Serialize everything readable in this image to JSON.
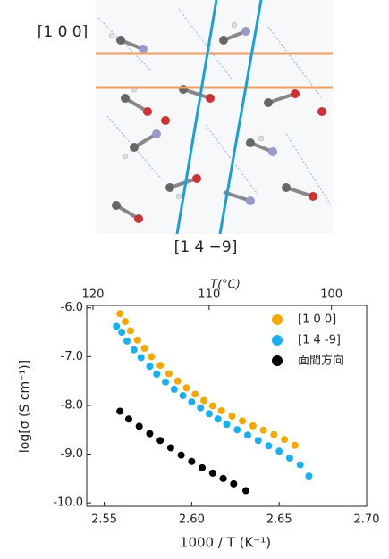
{
  "figure": {
    "labels": [
      "[1 0 0]",
      "[1 4 −9]"
    ],
    "colors": [
      "#f0a060",
      "#1a9fd6"
    ]
  },
  "chart_data": {
    "type": "scatter",
    "title": "T(°C)",
    "x_label": "1000 / T (K⁻¹)",
    "y_label": "log[σ (S cm⁻¹)]",
    "xlim": [
      2.54,
      2.7
    ],
    "ylim": [
      -10.07,
      -5.95
    ],
    "xticks": [
      2.55,
      {
        "value": 2.6,
        "label": "2.60"
      },
      2.65,
      {
        "value": 2.7,
        "label": "2.70"
      }
    ],
    "yticks": [
      {
        "value": -6,
        "label": "-6.0"
      },
      {
        "value": -7,
        "label": "-7.0"
      },
      {
        "value": -8,
        "label": "-8.0"
      },
      {
        "value": -9,
        "label": "-9.0"
      },
      {
        "value": -10,
        "label": "-10.0"
      }
    ],
    "x2ticks": [
      120,
      110,
      100
    ],
    "legend": "upper right",
    "series": [
      {
        "name": "[1 0 0]",
        "color": "#f5a800",
        "x": [
          2.559,
          2.562,
          2.565,
          2.569,
          2.573,
          2.577,
          2.582,
          2.587,
          2.592,
          2.597,
          2.602,
          2.607,
          2.612,
          2.617,
          2.623,
          2.629,
          2.635,
          2.641,
          2.647,
          2.653,
          2.659
        ],
        "values": [
          -6.12,
          -6.28,
          -6.47,
          -6.66,
          -6.83,
          -7.0,
          -7.18,
          -7.35,
          -7.5,
          -7.64,
          -7.77,
          -7.9,
          -8.01,
          -8.11,
          -8.22,
          -8.32,
          -8.42,
          -8.51,
          -8.6,
          -8.7,
          -8.82
        ]
      },
      {
        "name": "[1 4 -9]",
        "color": "#1ab0f0",
        "x": [
          2.557,
          2.56,
          2.563,
          2.567,
          2.571,
          2.576,
          2.58,
          2.585,
          2.59,
          2.595,
          2.6,
          2.605,
          2.61,
          2.615,
          2.62,
          2.626,
          2.632,
          2.638,
          2.644,
          2.65,
          2.656,
          2.662,
          2.667
        ],
        "values": [
          -6.38,
          -6.5,
          -6.68,
          -6.86,
          -7.02,
          -7.2,
          -7.36,
          -7.52,
          -7.67,
          -7.8,
          -7.93,
          -8.05,
          -8.17,
          -8.28,
          -8.39,
          -8.5,
          -8.61,
          -8.72,
          -8.83,
          -8.94,
          -9.08,
          -9.22,
          -9.45
        ]
      },
      {
        "name": "面間方向",
        "color": "#000000",
        "x": [
          2.559,
          2.564,
          2.57,
          2.576,
          2.582,
          2.588,
          2.594,
          2.6,
          2.606,
          2.612,
          2.618,
          2.624,
          2.631
        ],
        "values": [
          -8.12,
          -8.28,
          -8.43,
          -8.58,
          -8.72,
          -8.87,
          -9.02,
          -9.15,
          -9.28,
          -9.39,
          -9.5,
          -9.61,
          -9.75
        ]
      }
    ]
  }
}
